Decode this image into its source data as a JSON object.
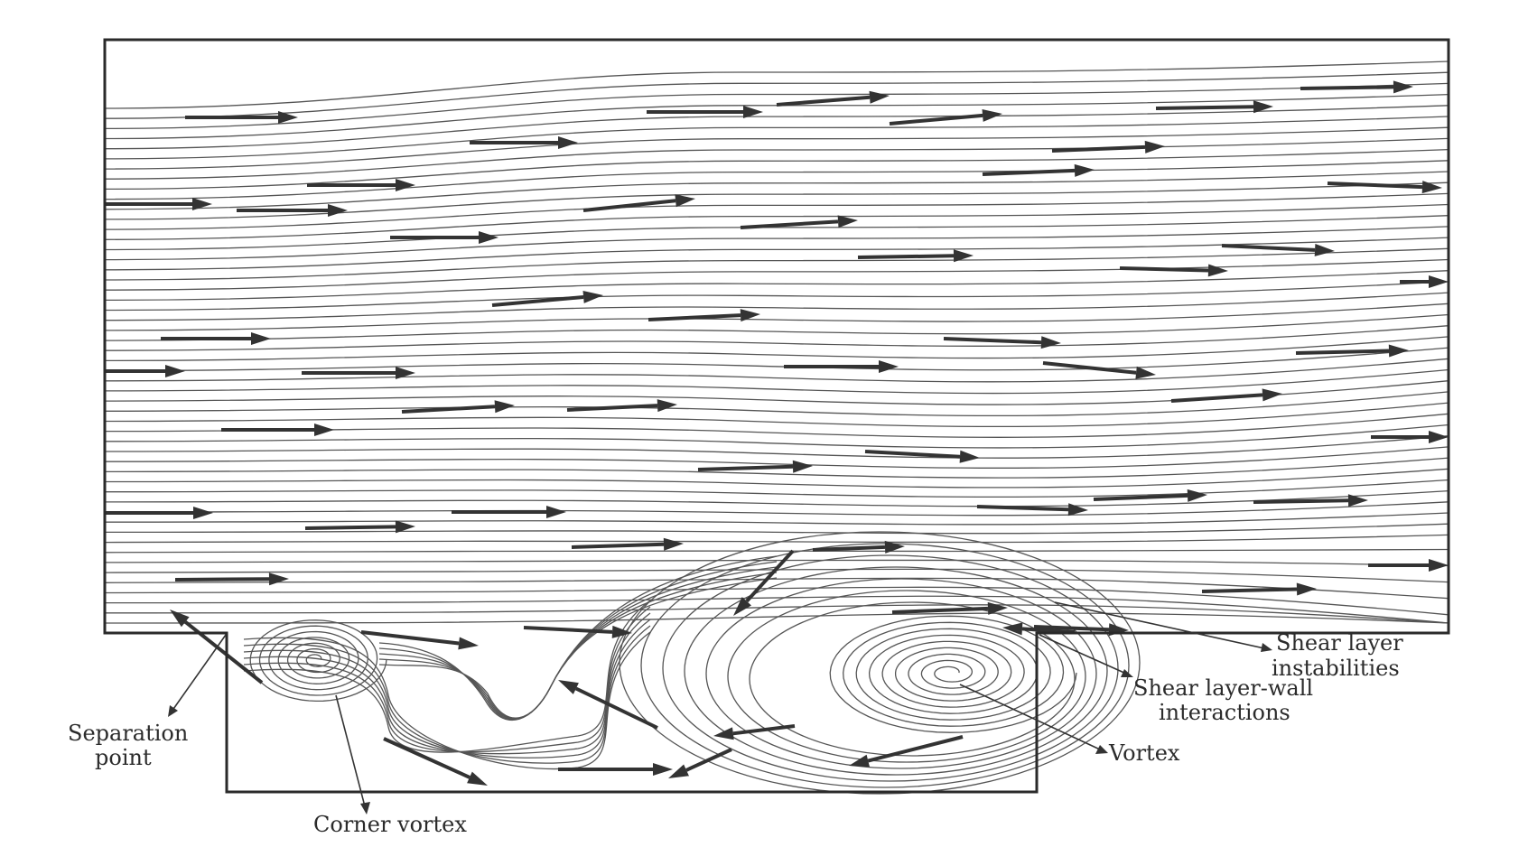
{
  "diagram": {
    "labels": {
      "separation_point": [
        "Separation",
        "point"
      ],
      "corner_vortex": "Corner vortex",
      "vortex": "Vortex",
      "shear_layer_wall": [
        "Shear layer-wall",
        "interactions"
      ],
      "shear_layer_instabilities": [
        "Shear layer",
        "instabilities"
      ]
    }
  }
}
